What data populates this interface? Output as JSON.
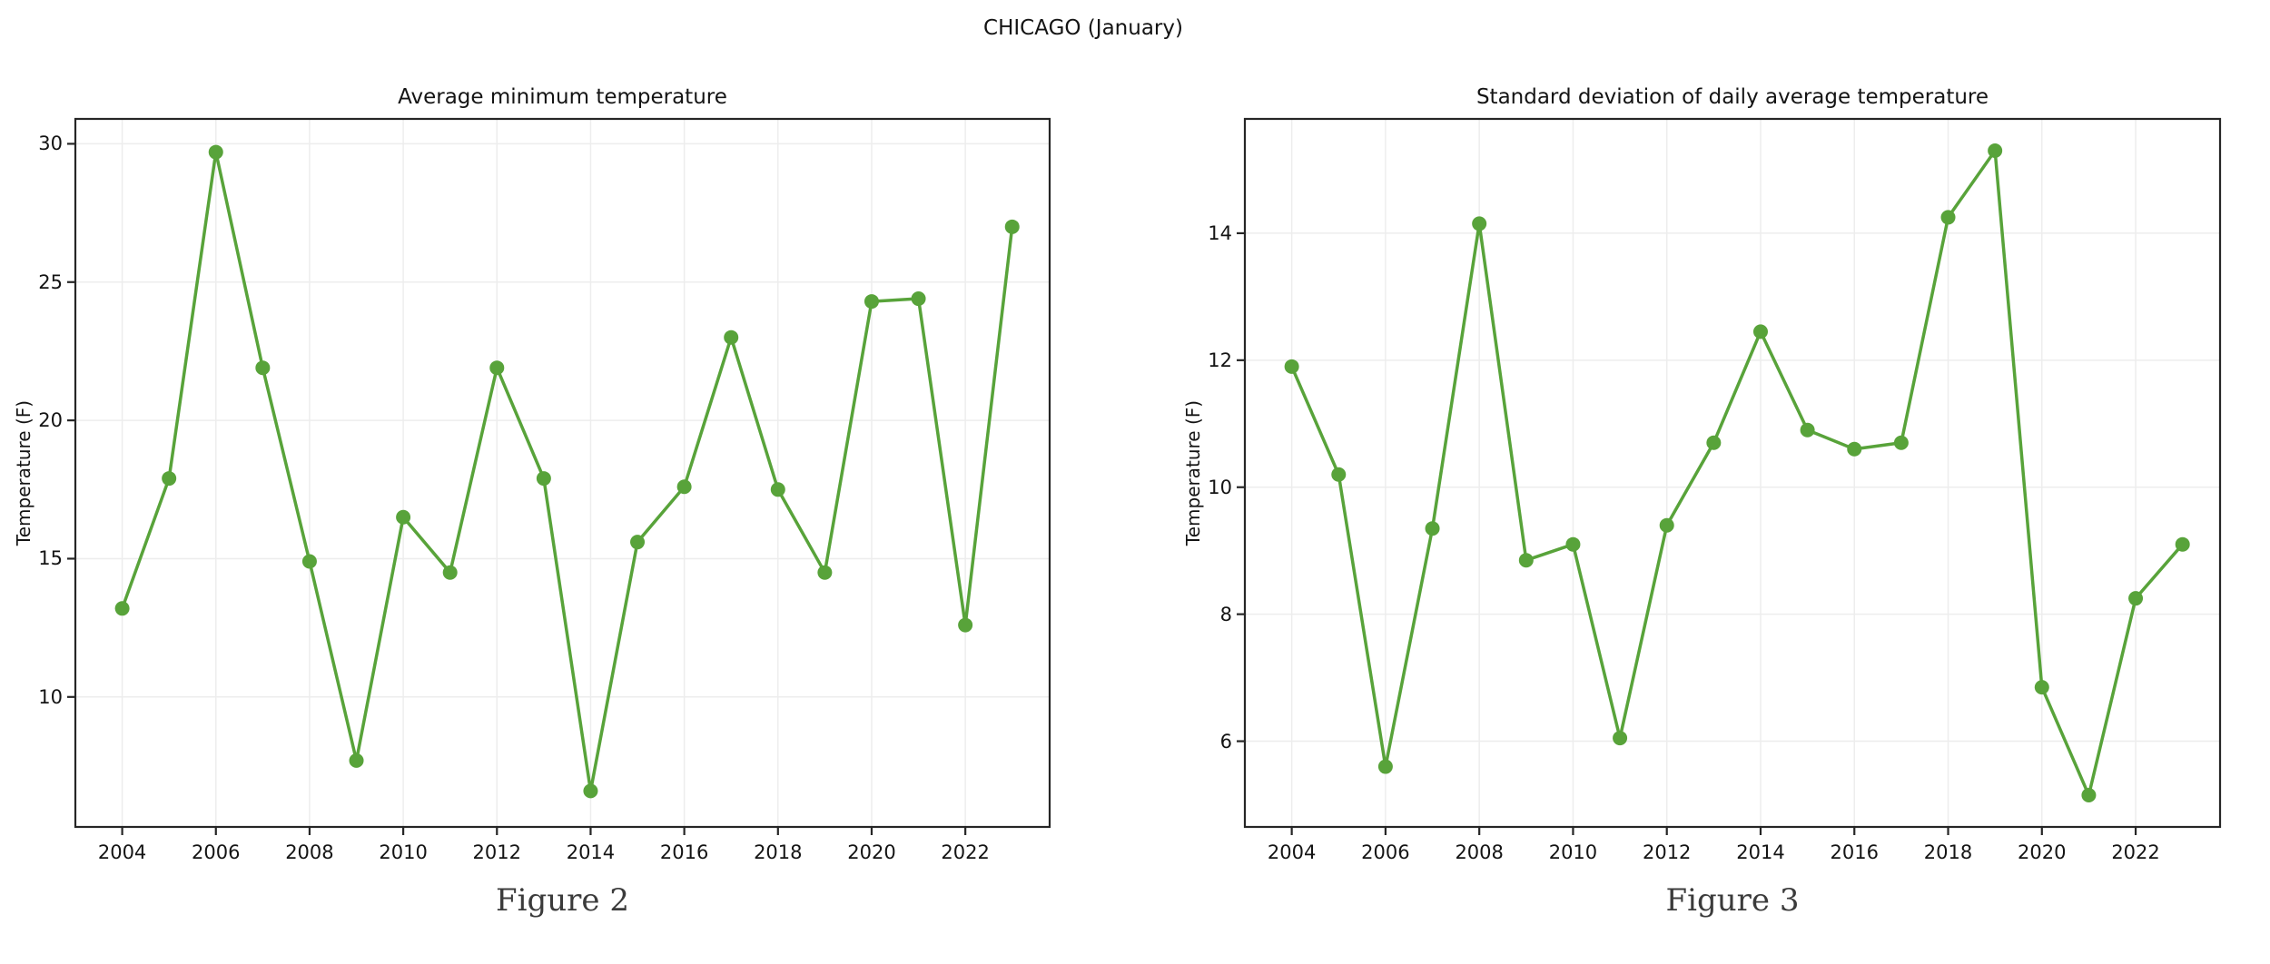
{
  "page": {
    "suptitle": "CHICAGO (January)"
  },
  "chart_data": [
    {
      "type": "line",
      "title": "Average minimum temperature",
      "ylabel": "Temperature (F)",
      "caption": "Figure 2",
      "x": [
        2004,
        2005,
        2006,
        2007,
        2008,
        2009,
        2010,
        2011,
        2012,
        2013,
        2014,
        2015,
        2016,
        2017,
        2018,
        2019,
        2020,
        2021,
        2022,
        2023
      ],
      "values": [
        13.2,
        17.9,
        29.7,
        21.9,
        14.9,
        7.7,
        16.5,
        14.5,
        21.9,
        17.9,
        6.6,
        15.6,
        17.6,
        23.0,
        17.5,
        14.5,
        24.3,
        24.4,
        12.6,
        27.0
      ],
      "xticks": [
        2004,
        2006,
        2008,
        2010,
        2012,
        2014,
        2016,
        2018,
        2020,
        2022
      ],
      "yticks": [
        10,
        15,
        20,
        25,
        30
      ],
      "xlim": [
        2003.0,
        2023.8
      ],
      "ylim": [
        5.3,
        30.9
      ],
      "grid": true,
      "legend": "none",
      "line_color": "#58a33a",
      "marker": "circle"
    },
    {
      "type": "line",
      "title": "Standard deviation of daily average temperature",
      "ylabel": "Temperature (F)",
      "caption": "Figure 3",
      "x": [
        2004,
        2005,
        2006,
        2007,
        2008,
        2009,
        2010,
        2011,
        2012,
        2013,
        2014,
        2015,
        2016,
        2017,
        2018,
        2019,
        2020,
        2021,
        2022,
        2023
      ],
      "values": [
        11.9,
        10.2,
        5.6,
        9.35,
        14.15,
        8.85,
        9.1,
        6.05,
        9.4,
        10.7,
        12.45,
        10.9,
        10.6,
        10.7,
        14.25,
        15.3,
        6.85,
        5.15,
        8.25,
        9.1
      ],
      "xticks": [
        2004,
        2006,
        2008,
        2010,
        2012,
        2014,
        2016,
        2018,
        2020,
        2022
      ],
      "yticks": [
        6,
        8,
        10,
        12,
        14
      ],
      "xlim": [
        2003.0,
        2023.8
      ],
      "ylim": [
        4.65,
        15.8
      ],
      "grid": true,
      "legend": "none",
      "line_color": "#58a33a",
      "marker": "circle"
    }
  ],
  "style_colors": {
    "line_green": "#58a33a",
    "gridline": "#ededed",
    "spine": "#262626",
    "caption_text": "#3b3b3b"
  }
}
